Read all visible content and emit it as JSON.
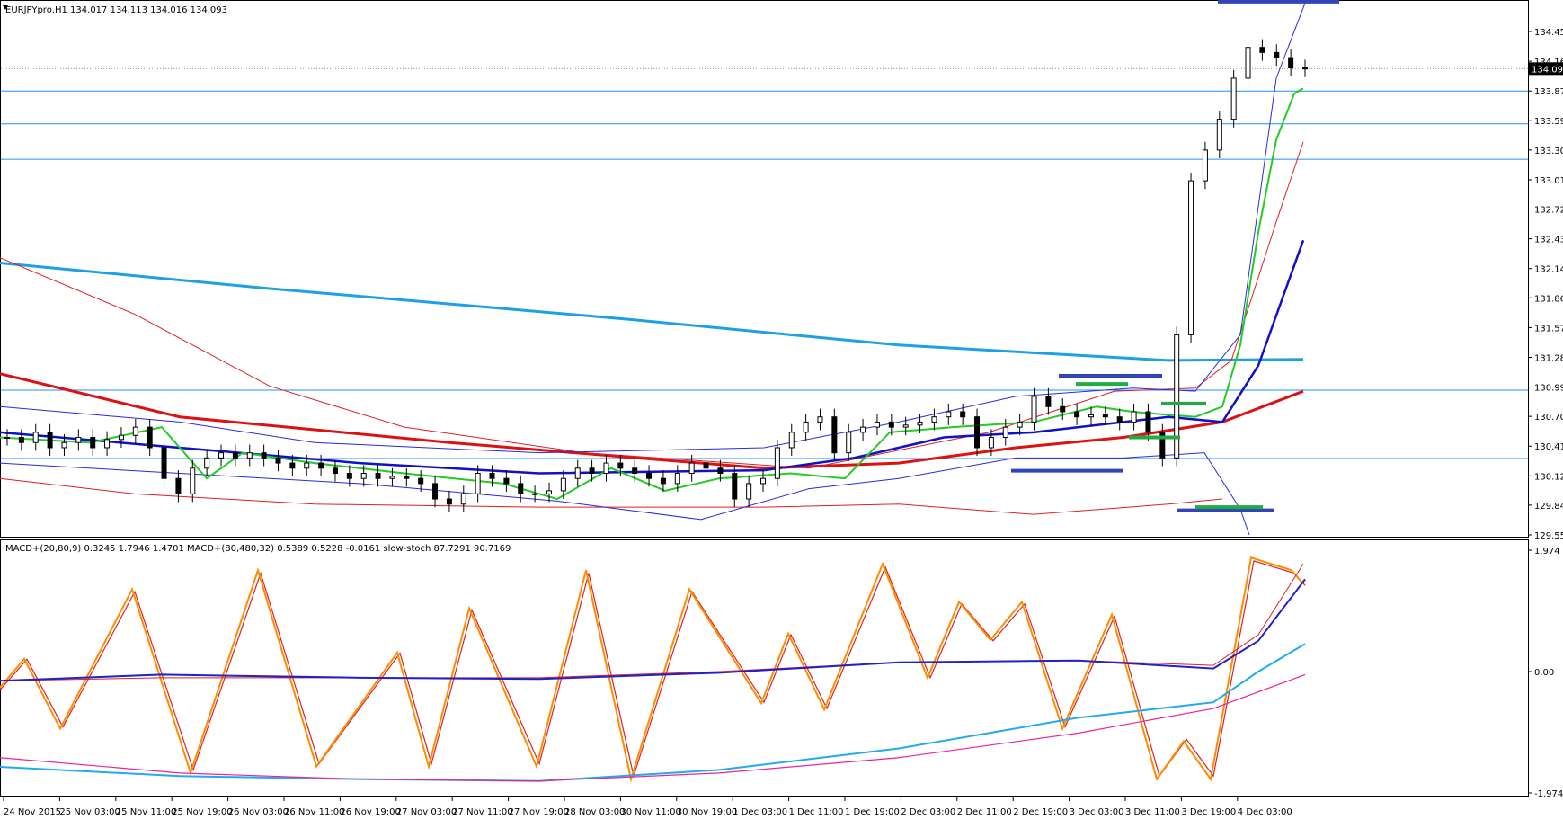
{
  "header": {
    "symbol_info": "EURJPYpro,H1  134.017 134.113 134.016 134.093",
    "current_price": "134.093",
    "current_price_level": 134.093
  },
  "price_axis": {
    "min": 129.55,
    "max": 134.745,
    "labels": [
      "134.455",
      "134.165",
      "133.875",
      "133.590",
      "133.300",
      "133.010",
      "132.725",
      "132.435",
      "132.145",
      "131.860",
      "131.570",
      "131.280",
      "130.990",
      "130.705",
      "130.415",
      "130.125",
      "129.840",
      "129.550"
    ]
  },
  "indicator_axis": {
    "min": -1.974,
    "max": 1.974,
    "labels": [
      "1.974",
      "0.00",
      "-1.974"
    ]
  },
  "indicator_title": "MACD+(20,80,9) 0.3245 1.7946 1.4701  MACD+(80,480,32) 0.5389 0.5228 -0.0161  slow-stoch 87.7291 90.7169",
  "time_axis": {
    "labels": [
      "24 Nov 2015",
      "25 Nov 03:00",
      "25 Nov 11:00",
      "25 Nov 19:00",
      "26 Nov 03:00",
      "26 Nov 11:00",
      "26 Nov 19:00",
      "27 Nov 03:00",
      "27 Nov 11:00",
      "27 Nov 19:00",
      "28 Nov 03:00",
      "30 Nov 11:00",
      "30 Nov 19:00",
      "1 Dec 03:00",
      "1 Dec 11:00",
      "1 Dec 19:00",
      "2 Dec 03:00",
      "2 Dec 11:00",
      "2 Dec 19:00",
      "3 Dec 03:00",
      "3 Dec 11:00",
      "3 Dec 19:00",
      "4 Dec 03:00"
    ]
  },
  "horizontal_levels": [
    133.875,
    133.555,
    133.21,
    130.96,
    130.295
  ],
  "colors": {
    "background": "#ffffff",
    "grid": "#000000",
    "hline": "#1e90ff",
    "ma_fast": "#22cc22",
    "ma_mid": "#1010cc",
    "ma_slow": "#dd1111",
    "ma_long": "#1ea0e6",
    "bb_band": "#2a2ae0",
    "env_band": "#e02020",
    "stoch_main": "#ff8c00",
    "stoch_signal": "#dd2222",
    "macd_long": "#22aaee",
    "macd_long_signal": "#ee2299",
    "marker_blue": "#3344bb",
    "marker_green": "#22aa44"
  }
}
